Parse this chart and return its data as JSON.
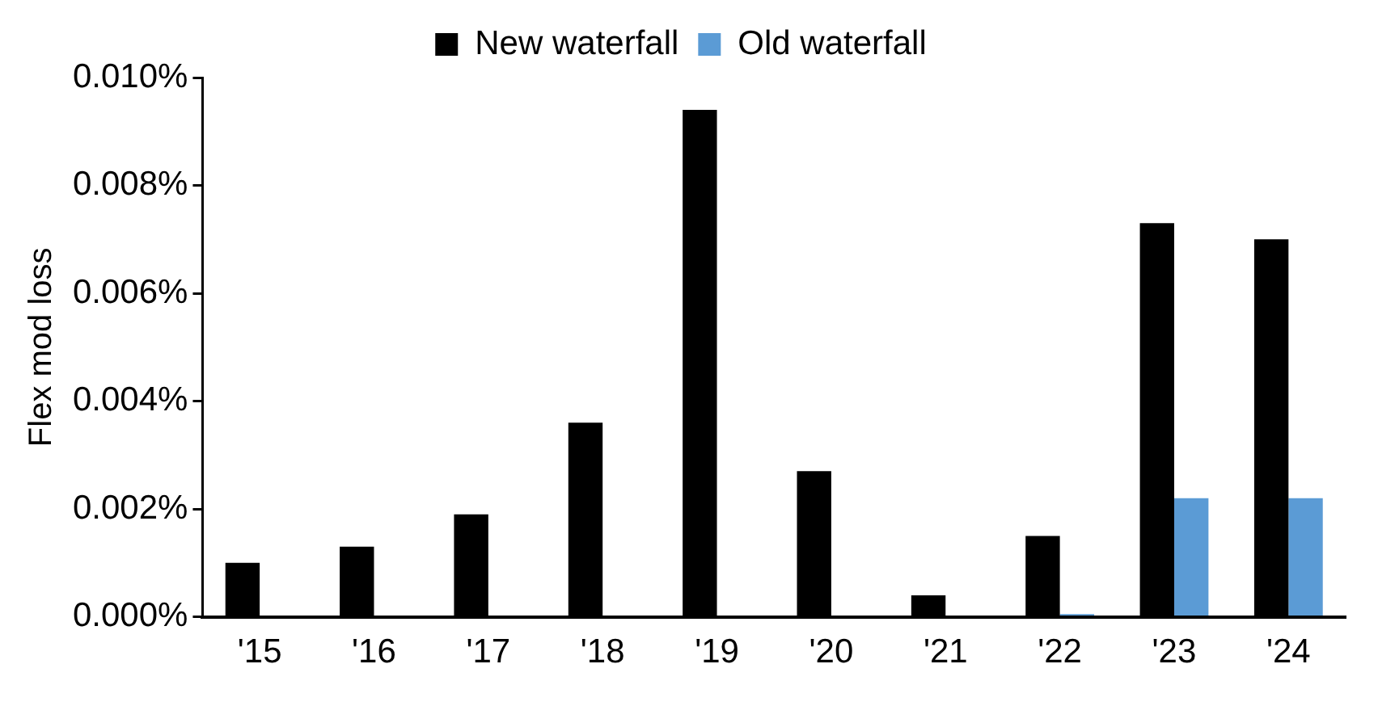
{
  "chart_data": {
    "type": "bar",
    "ylabel": "Flex mod loss",
    "categories": [
      "'15",
      "'16",
      "'17",
      "'18",
      "'19",
      "'20",
      "'21",
      "'22",
      "'23",
      "'24"
    ],
    "series": [
      {
        "name": "New waterfall",
        "color": "#000000",
        "values": [
          0.001,
          0.0013,
          0.0019,
          0.0036,
          0.0094,
          0.0027,
          0.0004,
          0.0015,
          0.0073,
          0.007
        ]
      },
      {
        "name": "Old waterfall",
        "color": "#5b9bd5",
        "values": [
          0,
          0,
          0,
          0,
          0,
          0,
          0,
          5e-05,
          0.0022,
          0.0022
        ]
      }
    ],
    "ylim": [
      0,
      0.01
    ],
    "yticks": [
      {
        "value": 0,
        "label": "0.000%"
      },
      {
        "value": 0.002,
        "label": "0.002%"
      },
      {
        "value": 0.004,
        "label": "0.004%"
      },
      {
        "value": 0.006,
        "label": "0.006%"
      },
      {
        "value": 0.008,
        "label": "0.008%"
      },
      {
        "value": 0.01,
        "label": "0.010%"
      }
    ],
    "grid": false,
    "legend": "top"
  }
}
